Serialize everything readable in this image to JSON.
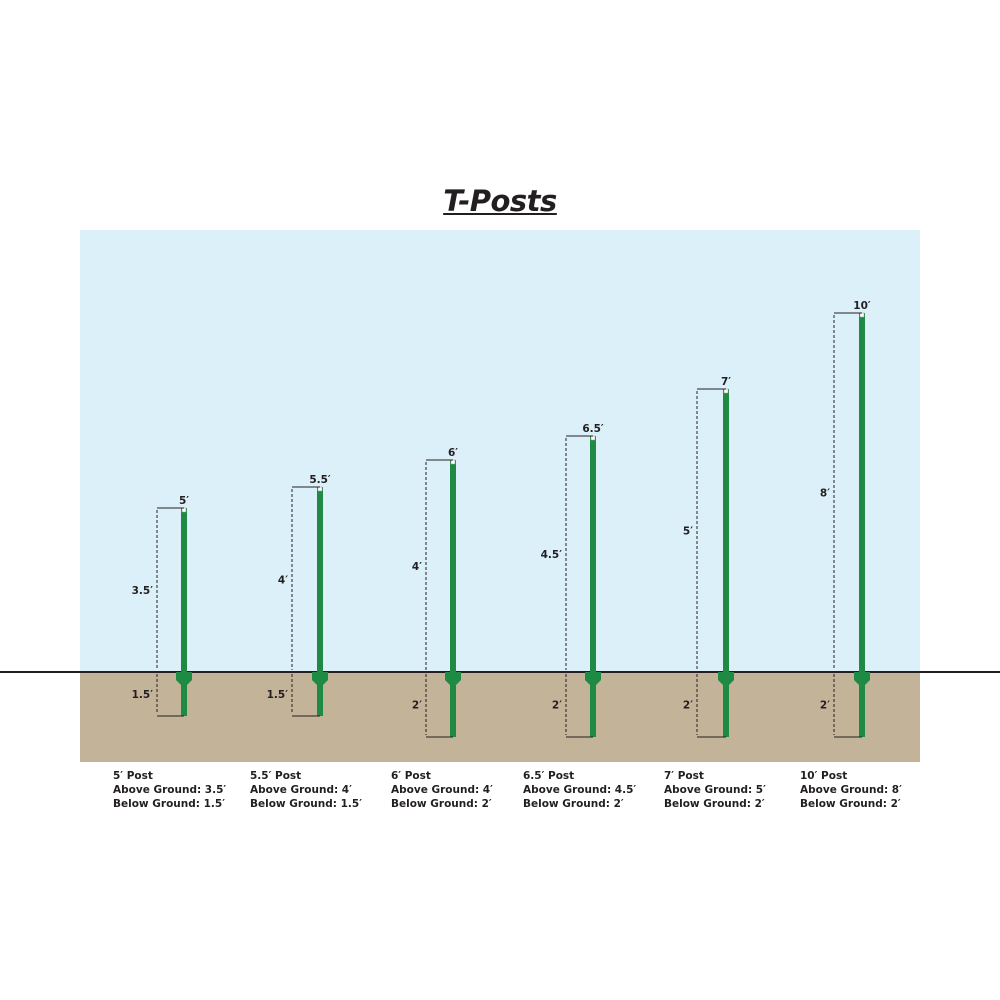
{
  "title": "T-Posts",
  "colors": {
    "sky": "#dcf0fa",
    "ground": "#c3b399",
    "post": "#1f8a43",
    "ground_line": "#231f20"
  },
  "posts": [
    {
      "length": "5′",
      "above": "3.5′",
      "below": "1.5′",
      "name": "5′ Post",
      "above_text": "Above Ground: 3.5′",
      "below_text": "Below Ground: 1.5′"
    },
    {
      "length": "5.5′",
      "above": "4′",
      "below": "1.5′",
      "name": "5.5′ Post",
      "above_text": "Above Ground: 4′",
      "below_text": "Below Ground: 1.5′"
    },
    {
      "length": "6′",
      "above": "4′",
      "below": "2′",
      "name": "6′ Post",
      "above_text": "Above Ground: 4′",
      "below_text": "Below Ground: 2′"
    },
    {
      "length": "6.5′",
      "above": "4.5′",
      "below": "2′",
      "name": "6.5′ Post",
      "above_text": "Above Ground: 4.5′",
      "below_text": "Below Ground: 2′"
    },
    {
      "length": "7′",
      "above": "5′",
      "below": "2′",
      "name": "7′ Post",
      "above_text": "Above Ground: 5′",
      "below_text": "Below Ground: 2′"
    },
    {
      "length": "10′",
      "above": "8′",
      "below": "2′",
      "name": "10′ Post",
      "above_text": "Above Ground: 8′",
      "below_text": "Below Ground: 2′"
    }
  ]
}
